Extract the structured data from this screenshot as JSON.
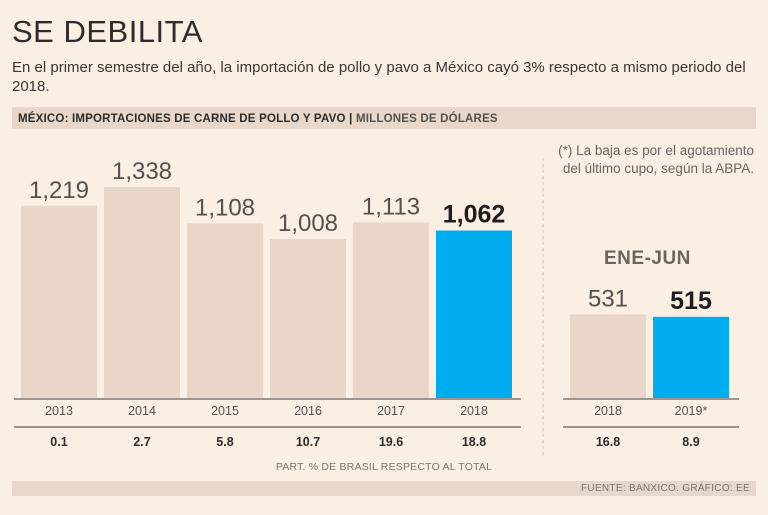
{
  "headline": "SE DEBILITA",
  "subtitle": "En el primer semestre del año, la importación de pollo y pavo a México cayó 3% respecto a mismo periodo del 2018.",
  "section": {
    "title": "MÉXICO: IMPORTACIONES DE CARNE DE POLLO Y PAVO",
    "separator": "|",
    "unit": "MILLONES DE DÓLARES"
  },
  "note": "(*) La baja es por el agotamiento del último cupo, según la ABPA.",
  "period_label": "ENE-JUN",
  "share_caption": "PART. % DE BRASIL RESPECTO AL TOTAL",
  "footer": "FUENTE: BANXICO.  GRÁFICO: EE",
  "colors": {
    "bar": "#e8d7c8",
    "highlight": "#00aeef",
    "background": "#fbeee3",
    "text": "#3d3a37"
  },
  "chart_data": [
    {
      "type": "bar",
      "categories": [
        "2013",
        "2014",
        "2015",
        "2016",
        "2017",
        "2018"
      ],
      "values": [
        1219,
        1338,
        1108,
        1008,
        1113,
        1062
      ],
      "value_labels": [
        "1,219",
        "1,338",
        "1,108",
        "1,008",
        "1,113",
        "1,062"
      ],
      "share": [
        "0.1",
        "2.7",
        "5.8",
        "10.7",
        "19.6",
        "18.8"
      ],
      "highlight_index": 5,
      "ylim": [
        0,
        1338
      ]
    },
    {
      "type": "bar",
      "title": "ENE-JUN",
      "categories": [
        "2018",
        "2019*"
      ],
      "values": [
        531,
        515
      ],
      "value_labels": [
        "531",
        "515"
      ],
      "share": [
        "16.8",
        "8.9"
      ],
      "highlight_index": 1,
      "ylim": [
        0,
        1338
      ]
    }
  ]
}
